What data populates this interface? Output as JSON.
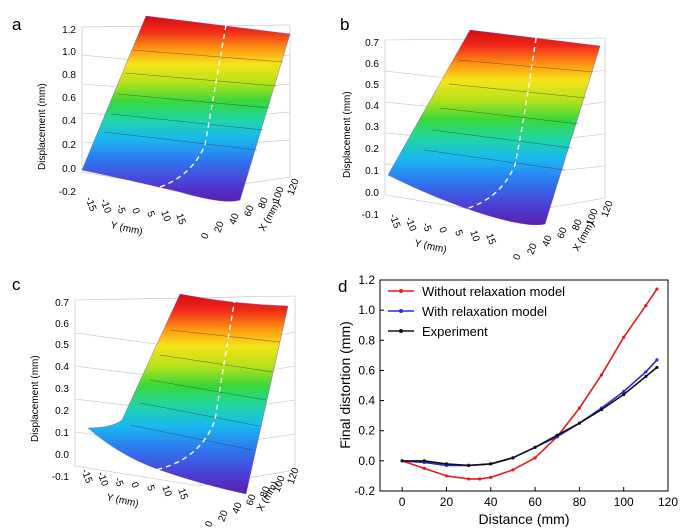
{
  "panels3d": [
    {
      "letter": "a",
      "zlabel": "Displacement (mm)",
      "xlabel": "X (mm)",
      "ylabel": "Y (mm)",
      "zticks": [
        "1.2",
        "1.0",
        "0.8",
        "0.6",
        "0.4",
        "0.2",
        "0.0",
        "-0.2"
      ],
      "xticks": [
        "0",
        "20",
        "40",
        "60",
        "80",
        "100",
        "120"
      ],
      "yticks": [
        "-15",
        "-10",
        "-5",
        "0",
        "5",
        "10",
        "15"
      ]
    },
    {
      "letter": "b",
      "zlabel": "Displacement (mm)",
      "xlabel": "X (mm)",
      "ylabel": "Y (mm)",
      "zticks": [
        "0.7",
        "0.6",
        "0.5",
        "0.4",
        "0.3",
        "0.2",
        "0.1",
        "0.0",
        "-0.1"
      ],
      "xticks": [
        "0",
        "20",
        "40",
        "60",
        "80",
        "100",
        "120"
      ],
      "yticks": [
        "-15",
        "-10",
        "-5",
        "0",
        "5",
        "10",
        "15"
      ]
    },
    {
      "letter": "c",
      "zlabel": "Displacement (mm)",
      "xlabel": "X (mm)",
      "ylabel": "Y (mm)",
      "zticks": [
        "0.7",
        "0.6",
        "0.5",
        "0.4",
        "0.3",
        "0.2",
        "0.1",
        "0.0",
        "-0.1"
      ],
      "xticks": [
        "0",
        "20",
        "40",
        "60",
        "80",
        "100",
        "120"
      ],
      "yticks": [
        "-15",
        "-10",
        "-5",
        "0",
        "5",
        "10",
        "15"
      ]
    }
  ],
  "chart_data": {
    "letter": "d",
    "type": "line",
    "xlabel": "Distance (mm)",
    "ylabel": "Final distortion (mm)",
    "xlim": [
      -10,
      120
    ],
    "ylim": [
      -0.2,
      1.2
    ],
    "xticks": [
      0,
      20,
      40,
      60,
      80,
      100,
      120
    ],
    "yticks": [
      -0.2,
      0.0,
      0.2,
      0.4,
      0.6,
      0.8,
      1.0,
      1.2
    ],
    "legend_position": "top-left",
    "series": [
      {
        "name": "Without relaxation model",
        "color": "#e8191b",
        "x": [
          0,
          10,
          20,
          30,
          35,
          40,
          50,
          60,
          70,
          80,
          90,
          100,
          110,
          115
        ],
        "y": [
          0.0,
          -0.05,
          -0.1,
          -0.12,
          -0.12,
          -0.11,
          -0.06,
          0.02,
          0.16,
          0.35,
          0.57,
          0.82,
          1.03,
          1.14
        ]
      },
      {
        "name": "With relaxation model",
        "color": "#2a2adb",
        "x": [
          0,
          10,
          20,
          30,
          40,
          50,
          60,
          70,
          80,
          90,
          100,
          110,
          115
        ],
        "y": [
          0.0,
          -0.01,
          -0.03,
          -0.03,
          -0.02,
          0.02,
          0.09,
          0.16,
          0.25,
          0.35,
          0.46,
          0.59,
          0.67
        ]
      },
      {
        "name": "Experiment",
        "color": "#111111",
        "x": [
          0,
          10,
          20,
          30,
          40,
          50,
          60,
          70,
          80,
          90,
          100,
          110,
          115
        ],
        "y": [
          0.0,
          0.0,
          -0.02,
          -0.03,
          -0.02,
          0.02,
          0.09,
          0.17,
          0.25,
          0.34,
          0.44,
          0.56,
          0.62
        ]
      }
    ]
  }
}
